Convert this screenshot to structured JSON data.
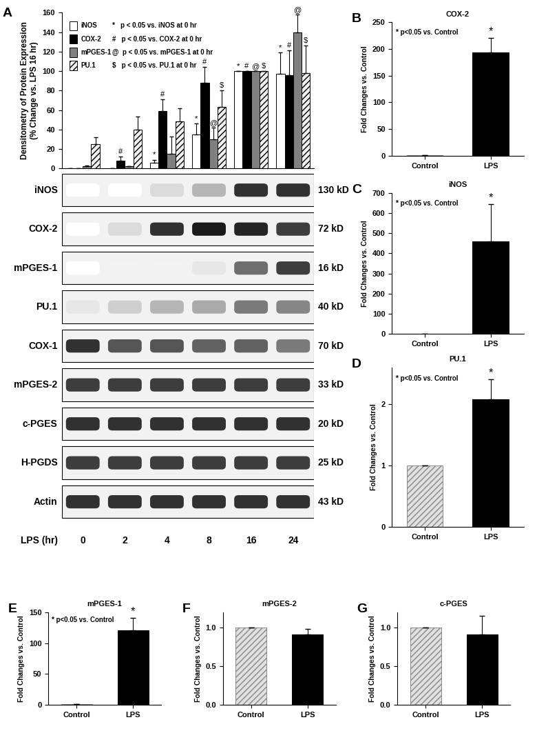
{
  "chart_data": [
    {
      "type": "bar",
      "panel": "A",
      "y_label": "Densitometry of Protein Expression\n(% Change vs. LPS 16 hr)",
      "categories": [
        0,
        2,
        4,
        8,
        16,
        24
      ],
      "tick_labels": "y",
      "ylim": [
        0,
        160
      ],
      "yticks": [
        0,
        20,
        40,
        60,
        80,
        100,
        120,
        140,
        160
      ],
      "legend": "upper left",
      "series": [
        {
          "name": "iNOS",
          "color": "#ffffff",
          "values": [
            0,
            0.5,
            6,
            35,
            100,
            97
          ],
          "errors": [
            0,
            0,
            3,
            11,
            0,
            22
          ],
          "note": "*   p < 0.05 vs. iNOS at 0 hr",
          "sig_labels": [
            null,
            null,
            "*",
            "*",
            "*",
            "*"
          ]
        },
        {
          "name": "COX-2",
          "color": "#000000",
          "values": [
            0,
            8,
            59,
            88,
            100,
            96
          ],
          "errors": [
            0,
            4,
            12,
            16,
            0,
            25
          ],
          "note": "#   p < 0.05 vs. COX-2 at 0 hr",
          "sig_labels": [
            null,
            "#",
            "#",
            "#",
            "#",
            "#"
          ]
        },
        {
          "name": "mPGES-1",
          "color": "#808080",
          "values": [
            2,
            2,
            15,
            30,
            100,
            140
          ],
          "errors": [
            1,
            0.5,
            18,
            12,
            0,
            18
          ],
          "note": "@  p < 0.05 vs. mPGES-1 at 0 hr",
          "sig_labels": [
            null,
            null,
            null,
            "@",
            "@",
            "@"
          ]
        },
        {
          "name": "PU.1",
          "color": "#f0f0f0",
          "values": [
            25,
            40,
            48,
            63,
            100,
            98
          ],
          "errors": [
            7,
            13,
            14,
            17,
            0,
            28
          ],
          "note": "$   p < 0.05 vs. PU.1 at 0 hr",
          "sig_labels": [
            null,
            null,
            null,
            "$",
            "$",
            "$"
          ]
        }
      ]
    },
    {
      "type": "blot",
      "lanes": [
        0,
        2,
        4,
        8,
        16,
        24
      ],
      "lane_label": "LPS (hr)",
      "rows": [
        {
          "name": "iNOS",
          "size": "130 kD",
          "intensity": [
            0,
            0,
            0.15,
            0.3,
            0.85,
            0.85
          ]
        },
        {
          "name": "COX-2",
          "size": "72 kD",
          "intensity": [
            0,
            0.15,
            0.85,
            0.95,
            0.9,
            0.8
          ]
        },
        {
          "name": "mPGES-1",
          "size": "16 kD",
          "intensity": [
            0,
            0.05,
            0.05,
            0.1,
            0.6,
            0.8
          ]
        },
        {
          "name": "PU.1",
          "size": "40 kD",
          "intensity": [
            0.1,
            0.2,
            0.3,
            0.35,
            0.55,
            0.5
          ]
        },
        {
          "name": "COX-1",
          "size": "70 kD",
          "intensity": [
            0.85,
            0.7,
            0.7,
            0.65,
            0.65,
            0.55
          ]
        },
        {
          "name": "mPGES-2",
          "size": "33 kD",
          "intensity": [
            0.8,
            0.8,
            0.8,
            0.8,
            0.8,
            0.8
          ]
        },
        {
          "name": "c-PGES",
          "size": "20 kD",
          "intensity": [
            0.85,
            0.85,
            0.85,
            0.85,
            0.85,
            0.85
          ]
        },
        {
          "name": "H-PGDS",
          "size": "25 kD",
          "intensity": [
            0.8,
            0.8,
            0.8,
            0.8,
            0.8,
            0.8
          ]
        },
        {
          "name": "Actin",
          "size": "43 kD",
          "intensity": [
            0.85,
            0.85,
            0.85,
            0.85,
            0.85,
            0.85
          ]
        }
      ]
    },
    {
      "type": "bar",
      "panel": "B",
      "title": "COX-2",
      "y_label": "Fold Changes vs. Control",
      "annotation": "* p<0.05 vs. Control",
      "categories": [
        "Control",
        "LPS"
      ],
      "values": [
        1,
        193
      ],
      "errors": [
        0,
        28
      ],
      "sig_labels": [
        null,
        "*"
      ],
      "colors": [
        "#e0e0e0",
        "#000000"
      ],
      "ylim": [
        0,
        250
      ],
      "yticks": [
        0,
        50,
        100,
        150,
        200,
        250
      ]
    },
    {
      "type": "bar",
      "panel": "C",
      "title": "iNOS",
      "y_label": "Fold Changes vs. Control",
      "annotation": "* p<0.05 vs. Control",
      "categories": [
        "Control",
        "LPS"
      ],
      "values": [
        1,
        458
      ],
      "errors": [
        0,
        185
      ],
      "sig_labels": [
        null,
        "*"
      ],
      "colors": [
        "#e0e0e0",
        "#000000"
      ],
      "ylim": [
        0,
        700
      ],
      "yticks": [
        0,
        100,
        200,
        300,
        400,
        500,
        600,
        700
      ]
    },
    {
      "type": "bar",
      "panel": "D",
      "title": "PU.1",
      "y_label": "Fold Changes vs. Control",
      "annotation": "* p<0.05 vs. Control",
      "categories": [
        "Control",
        "LPS"
      ],
      "values": [
        1,
        2.08
      ],
      "errors": [
        0,
        0.32
      ],
      "sig_labels": [
        null,
        "*"
      ],
      "colors": [
        "#e0e0e0",
        "#000000"
      ],
      "ylim": [
        0,
        2.6
      ],
      "yticks": [
        0,
        1,
        2
      ]
    },
    {
      "type": "bar",
      "panel": "E",
      "title": "mPGES-1",
      "y_label": "Fold Changes vs. Control",
      "annotation": "* p<0.05 vs. Control",
      "categories": [
        "Control",
        "LPS"
      ],
      "values": [
        1,
        121
      ],
      "errors": [
        0,
        20
      ],
      "sig_labels": [
        null,
        "*"
      ],
      "colors": [
        "#e0e0e0",
        "#000000"
      ],
      "ylim": [
        0,
        150
      ],
      "yticks": [
        0,
        50,
        100,
        150
      ]
    },
    {
      "type": "bar",
      "panel": "F",
      "title": "mPGES-2",
      "y_label": "Fold Changes vs. Control",
      "categories": [
        "Control",
        "LPS"
      ],
      "values": [
        1,
        0.91
      ],
      "errors": [
        0,
        0.07
      ],
      "colors": [
        "#e0e0e0",
        "#000000"
      ],
      "ylim": [
        0,
        1.2
      ],
      "yticks": [
        {
          "value": 0,
          "label": "0.0"
        },
        {
          "value": 0.5,
          "label": "0.5"
        },
        {
          "value": 1,
          "label": "1.0"
        }
      ]
    },
    {
      "type": "bar",
      "panel": "G",
      "title": "c-PGES",
      "y_label": "Fold Changes vs. Control",
      "categories": [
        "Control",
        "LPS"
      ],
      "values": [
        1,
        0.91
      ],
      "errors": [
        0,
        0.24
      ],
      "colors": [
        "#e0e0e0",
        "#000000"
      ],
      "ylim": [
        0,
        1.2
      ],
      "yticks": [
        {
          "value": 0,
          "label": "0.0"
        },
        {
          "value": 0.5,
          "label": "0.5"
        },
        {
          "value": 1,
          "label": "1.0"
        }
      ]
    }
  ]
}
